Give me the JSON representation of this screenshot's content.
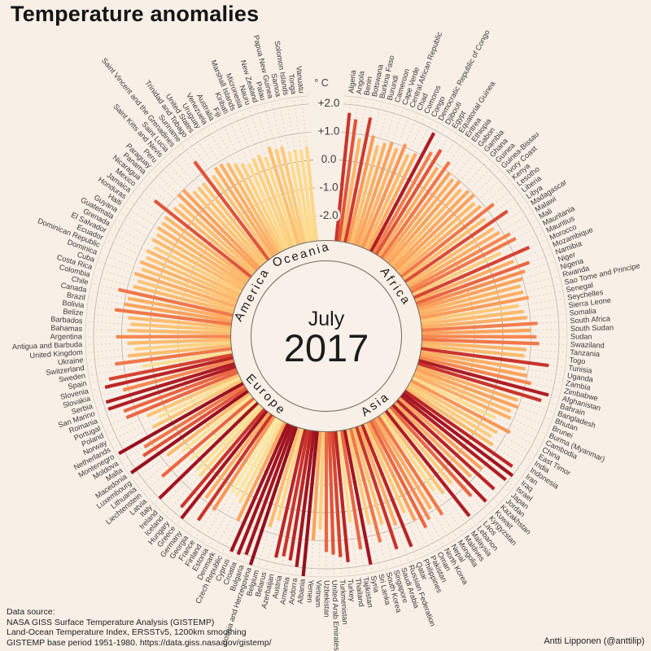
{
  "title": "Temperature anomalies",
  "center": {
    "month": "July",
    "year": "2017"
  },
  "footer": {
    "label": "Data source:",
    "line1": "NASA GISS Surface Temperature Analysis (GISTEMP)",
    "line2": "Land-Ocean Temperature Index, ERSSTv5, 1200km smoothing",
    "line3": "GISTEMP base period 1951-1980. https://data.giss.nasa.gov/gistemp/"
  },
  "attribution": "Antti Lipponen (@anttilip)",
  "colors": {
    "background": "#f8efe6",
    "grid_ring": "#c3bbb1",
    "zero_ring": "#b2aaa0",
    "outer_ring": "#d9cfc5",
    "dashed_guide": "#e9d2c6",
    "ring_outline": "#6f6a62",
    "center_fill": "#f9f1e9",
    "text_dark": "#1c1c1c",
    "label_gray": "#3a3a3a",
    "scale_stops": [
      [
        0.2,
        "#fbe9a7"
      ],
      [
        0.5,
        "#fdd687"
      ],
      [
        0.8,
        "#fdbb6d"
      ],
      [
        1.0,
        "#fba35c"
      ],
      [
        1.2,
        "#f58850"
      ],
      [
        1.4,
        "#ea6642"
      ],
      [
        1.6,
        "#d64432"
      ],
      [
        1.8,
        "#bb2526"
      ],
      [
        2.0,
        "#a31521"
      ],
      [
        2.4,
        "#8e0e1d"
      ]
    ]
  },
  "chart_data": {
    "type": "radial-bar",
    "title": "Temperature anomalies",
    "unit": "°C",
    "period": "July 2017",
    "value_axis": {
      "unit_label": "° C",
      "ticks": [
        2,
        1,
        0,
        -1,
        -2
      ],
      "tick_labels": [
        "+2.0",
        "+1.0",
        "0.0",
        "-1.0",
        "-2.0"
      ],
      "baseline_value": -2.88
    },
    "groups": [
      {
        "name": "Africa",
        "countries": [
          [
            "Algeria",
            1.7
          ],
          [
            "Angola",
            1.5
          ],
          [
            "Benin",
            0.85
          ],
          [
            "Botswana",
            1.65
          ],
          [
            "Burkina Faso",
            1.05
          ],
          [
            "Burundi",
            0.75
          ],
          [
            "Cameroon",
            0.9
          ],
          [
            "Cape Verde",
            1.0
          ],
          [
            "Central African Republic",
            0.85
          ],
          [
            "Chad",
            1.1
          ],
          [
            "Comoros",
            0.8
          ],
          [
            "Congo",
            0.95
          ],
          [
            "Democratic Republic of Congo",
            1.9
          ],
          [
            "Djibouti",
            1.25
          ],
          [
            "Egypt",
            1.5
          ],
          [
            "Equatorial Guinea",
            0.9
          ],
          [
            "Eritrea",
            1.3
          ],
          [
            "Ethiopia",
            1.0
          ],
          [
            "Gabon",
            0.9
          ],
          [
            "Gambia",
            1.0
          ],
          [
            "Ghana",
            0.8
          ],
          [
            "Guinea",
            0.95
          ],
          [
            "Guinea-Bissau",
            1.0
          ],
          [
            "Ivory Coast",
            0.8
          ],
          [
            "Kenya",
            0.9
          ],
          [
            "Lesotho",
            1.3
          ],
          [
            "Liberia",
            0.75
          ],
          [
            "Libya",
            1.55
          ],
          [
            "Madagascar",
            0.8
          ],
          [
            "Malawi",
            0.9
          ],
          [
            "Mali",
            1.2
          ],
          [
            "Mauritania",
            1.3
          ],
          [
            "Mauritius",
            0.6
          ],
          [
            "Morocco",
            1.6
          ],
          [
            "Mozambique",
            0.9
          ],
          [
            "Namibia",
            1.4
          ],
          [
            "Niger",
            1.15
          ],
          [
            "Nigeria",
            1.0
          ],
          [
            "Rwanda",
            0.85
          ],
          [
            "Sao Tome and Principe",
            0.9
          ],
          [
            "Senegal",
            1.05
          ],
          [
            "Seychelles",
            0.65
          ],
          [
            "Sierra Leone",
            0.8
          ],
          [
            "Somalia",
            0.9
          ],
          [
            "South Africa",
            1.25
          ],
          [
            "South Sudan",
            1.0
          ],
          [
            "Sudan",
            1.2
          ],
          [
            "Swaziland",
            1.3
          ],
          [
            "Tanzania",
            0.85
          ],
          [
            "Togo",
            0.8
          ],
          [
            "Tunisia",
            1.7
          ],
          [
            "Uganda",
            0.9
          ],
          [
            "Zambia",
            1.0
          ],
          [
            "Zimbabwe",
            1.2
          ]
        ]
      },
      {
        "name": "Asia",
        "countries": [
          [
            "Afghanistan",
            1.9
          ],
          [
            "Bahrain",
            1.7
          ],
          [
            "Bangladesh",
            0.9
          ],
          [
            "Bhutan",
            1.0
          ],
          [
            "Brunei",
            0.8
          ],
          [
            "Burma (Myanmar)",
            0.9
          ],
          [
            "Cambodia",
            0.4
          ],
          [
            "China",
            1.1
          ],
          [
            "East Timor",
            0.7
          ],
          [
            "India",
            0.6
          ],
          [
            "Indonesia",
            0.8
          ],
          [
            "Iran",
            1.8
          ],
          [
            "Iraq",
            2.0
          ],
          [
            "Israel",
            1.9
          ],
          [
            "Japan",
            1.0
          ],
          [
            "Jordan",
            1.8
          ],
          [
            "Kazakhstan",
            0.9
          ],
          [
            "Kuwait",
            1.9
          ],
          [
            "Kyrgyzstan",
            1.4
          ],
          [
            "Laos",
            0.6
          ],
          [
            "Lebanon",
            1.9
          ],
          [
            "Malaysia",
            0.7
          ],
          [
            "Maldives",
            0.4
          ],
          [
            "Mongolia",
            1.3
          ],
          [
            "Nepal",
            0.9
          ],
          [
            "North Korea",
            1.2
          ],
          [
            "Oman",
            1.4
          ],
          [
            "Pakistan",
            1.0
          ],
          [
            "Philippines",
            0.6
          ],
          [
            "Qatar",
            1.8
          ],
          [
            "Russian Federation",
            0.9
          ],
          [
            "Saudi Arabia",
            1.7
          ],
          [
            "Singapore",
            0.7
          ],
          [
            "South Korea",
            1.3
          ],
          [
            "Sri Lanka",
            0.6
          ],
          [
            "Syria",
            2.0
          ],
          [
            "Tajikistan",
            1.4
          ],
          [
            "Thailand",
            0.4
          ],
          [
            "Turkey",
            1.8
          ],
          [
            "Turkmenistan",
            1.6
          ],
          [
            "United Arab Emirates",
            1.5
          ],
          [
            "Uzbekistan",
            1.4
          ],
          [
            "Vietnam",
            0.6
          ],
          [
            "Yemen",
            1.0
          ]
        ]
      },
      {
        "name": "Europe",
        "countries": [
          [
            "Albania",
            2.3
          ],
          [
            "Andorra",
            2.0
          ],
          [
            "Armenia",
            1.8
          ],
          [
            "Austria",
            1.7
          ],
          [
            "Azerbaijan",
            1.8
          ],
          [
            "Belarus",
            0.5
          ],
          [
            "Belgium",
            0.8
          ],
          [
            "Bosnia and Herzegovina",
            2.3
          ],
          [
            "Bulgaria",
            2.0
          ],
          [
            "Croatia",
            2.1
          ],
          [
            "Cyprus",
            2.1
          ],
          [
            "Czech Republic",
            1.0
          ],
          [
            "Denmark",
            0.4
          ],
          [
            "Estonia",
            0.25
          ],
          [
            "Finland",
            0.2
          ],
          [
            "France",
            1.1
          ],
          [
            "Georgia",
            1.7
          ],
          [
            "Germany",
            0.9
          ],
          [
            "Greece",
            2.0
          ],
          [
            "Hungary",
            1.7
          ],
          [
            "Iceland",
            0.45
          ],
          [
            "Ireland",
            0.35
          ],
          [
            "Italy",
            2.0
          ],
          [
            "Latvia",
            0.25
          ],
          [
            "Liechtenstein",
            1.4
          ],
          [
            "Lithuania",
            0.3
          ],
          [
            "Luxembourg",
            0.8
          ],
          [
            "Macedonia",
            2.2
          ],
          [
            "Malta",
            1.5
          ],
          [
            "Moldova",
            1.3
          ],
          [
            "Montenegro",
            2.2
          ],
          [
            "Netherlands",
            0.7
          ],
          [
            "Norway",
            0.35
          ],
          [
            "Poland",
            0.7
          ],
          [
            "Portugal",
            1.4
          ],
          [
            "Romania",
            1.4
          ],
          [
            "San Marino",
            1.9
          ],
          [
            "Serbia",
            1.9
          ],
          [
            "Slovakia",
            1.2
          ],
          [
            "Slovenia",
            1.8
          ],
          [
            "Spain",
            1.6
          ],
          [
            "Sweden",
            0.35
          ],
          [
            "Switzerland",
            1.3
          ],
          [
            "Ukraine",
            0.8
          ],
          [
            "United Kingdom",
            0.55
          ]
        ]
      },
      {
        "name": "America",
        "countries": [
          [
            "Antigua and Barbuda",
            0.8
          ],
          [
            "Argentina",
            1.2
          ],
          [
            "Bahamas",
            0.8
          ],
          [
            "Barbados",
            0.7
          ],
          [
            "Belize",
            0.8
          ],
          [
            "Bolivia",
            1.3
          ],
          [
            "Brazil",
            1.0
          ],
          [
            "Canada",
            0.9
          ],
          [
            "Chile",
            1.3
          ],
          [
            "Colombia",
            0.8
          ],
          [
            "Costa Rica",
            0.7
          ],
          [
            "Cuba",
            0.9
          ],
          [
            "Dominica",
            0.7
          ],
          [
            "Dominican Republic",
            0.85
          ],
          [
            "Ecuador",
            0.7
          ],
          [
            "El Salvador",
            0.8
          ],
          [
            "Grenada",
            0.6
          ],
          [
            "Guatemala",
            0.8
          ],
          [
            "Guyana",
            0.75
          ],
          [
            "Haiti",
            0.85
          ],
          [
            "Honduras",
            0.8
          ],
          [
            "Jamaica",
            0.85
          ],
          [
            "Mexico",
            1.5
          ],
          [
            "Nicaragua",
            0.8
          ],
          [
            "Panama",
            0.75
          ],
          [
            "Paraguay",
            1.0
          ],
          [
            "Peru",
            1.0
          ],
          [
            "Saint Kitts and Nevis",
            0.7
          ],
          [
            "Saint Lucia",
            0.7
          ],
          [
            "Saint Vincent and the Grenadines",
            0.7
          ],
          [
            "Suriname",
            1.5
          ],
          [
            "Trinidad and Tobago",
            0.7
          ],
          [
            "United States",
            0.9
          ],
          [
            "Uruguay",
            0.9
          ],
          [
            "Venezuela",
            0.8
          ]
        ]
      },
      {
        "name": "Oceania",
        "countries": [
          [
            "Australia",
            0.65
          ],
          [
            "Fiji",
            0.55
          ],
          [
            "Kiribati",
            0.45
          ],
          [
            "Marshall Islands",
            0.55
          ],
          [
            "Micronesia",
            0.6
          ],
          [
            "Nauru",
            0.45
          ],
          [
            "New Zealand",
            0.75
          ],
          [
            "Palau",
            0.6
          ],
          [
            "Papua New Guinea",
            0.65
          ],
          [
            "Samoa",
            0.4
          ],
          [
            "Solomon Islands",
            0.45
          ],
          [
            "Tonga",
            0.4
          ],
          [
            "Vanuatu",
            0.5
          ]
        ]
      }
    ]
  }
}
